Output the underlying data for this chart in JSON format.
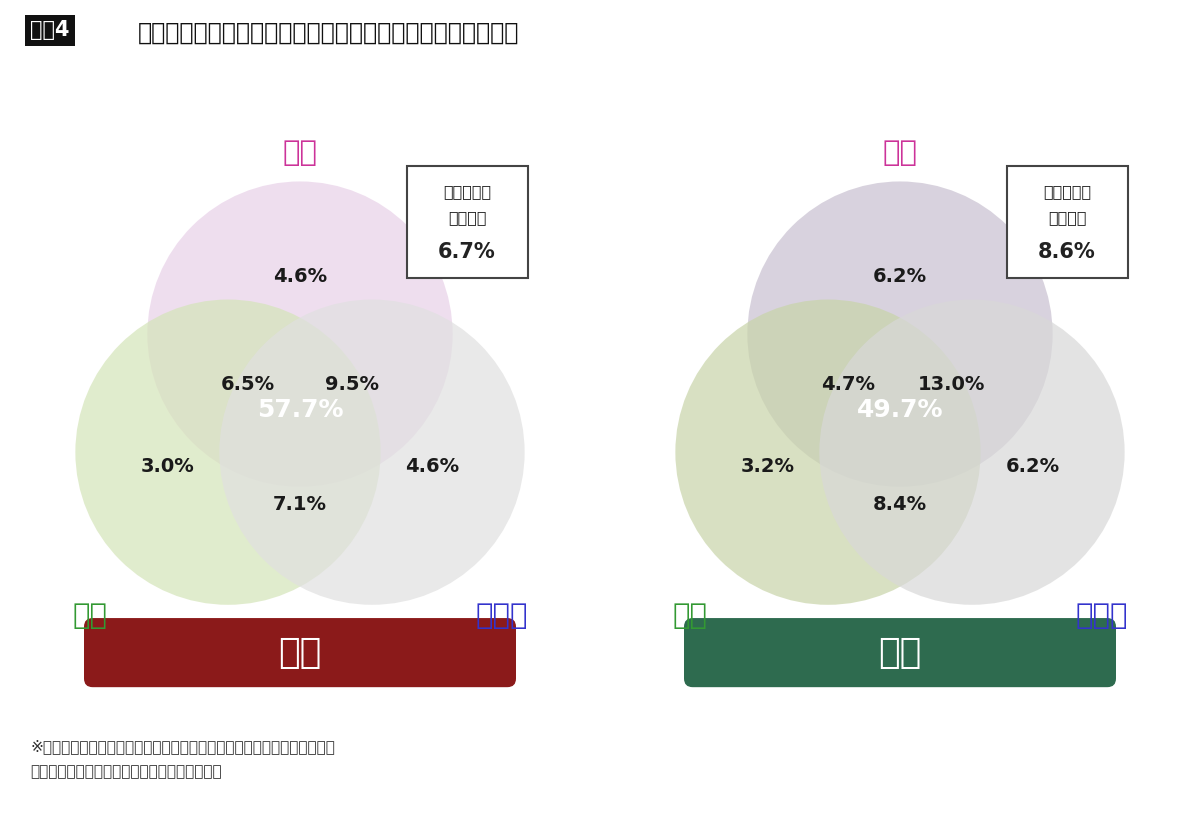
{
  "title_label": "図表4",
  "title_rest": "「本音・共鳴・シェア」の特性を併せ持つ人関東・関西比較",
  "background_color": "#ffffff",
  "left_label": "関西",
  "right_label": "関東",
  "left_label_bg": "#8B1A1A",
  "right_label_bg": "#2E6B4F",
  "kansai": {
    "honne_label": "本音",
    "kyomei_label": "共鳴",
    "share_label": "シェア",
    "honne_color": "#E8D0E8",
    "kyomei_color": "#D4E4B8",
    "share_color": "#E0E0E0",
    "honne_only": "4.6%",
    "kyomei_only": "3.0%",
    "share_only": "4.6%",
    "honne_kyomei": "6.5%",
    "honne_share": "9.5%",
    "kyomei_share": "7.1%",
    "all_three": "57.7%",
    "none": "6.7%",
    "honne_label_color": "#CC3399",
    "kyomei_label_color": "#339933",
    "share_label_color": "#3333CC"
  },
  "kanto": {
    "honne_label": "本音",
    "kyomei_label": "共鳴",
    "share_label": "シェア",
    "honne_color": "#C8C0D0",
    "kyomei_color": "#C8D4A8",
    "share_color": "#D8D8D8",
    "honne_only": "6.2%",
    "kyomei_only": "3.2%",
    "share_only": "6.2%",
    "honne_kyomei": "4.7%",
    "honne_share": "13.0%",
    "kyomei_share": "8.4%",
    "all_three": "49.7%",
    "none": "8.6%",
    "honne_label_color": "#CC3399",
    "kyomei_label_color": "#339933",
    "share_label_color": "#3333CC"
  },
  "footnote_line1": "※各々の領域を、最も反応の高かった上記項目に代表させ、反応の重なり",
  "footnote_line2": "（「はい」と複数項目答えた人の割合）を抽出"
}
